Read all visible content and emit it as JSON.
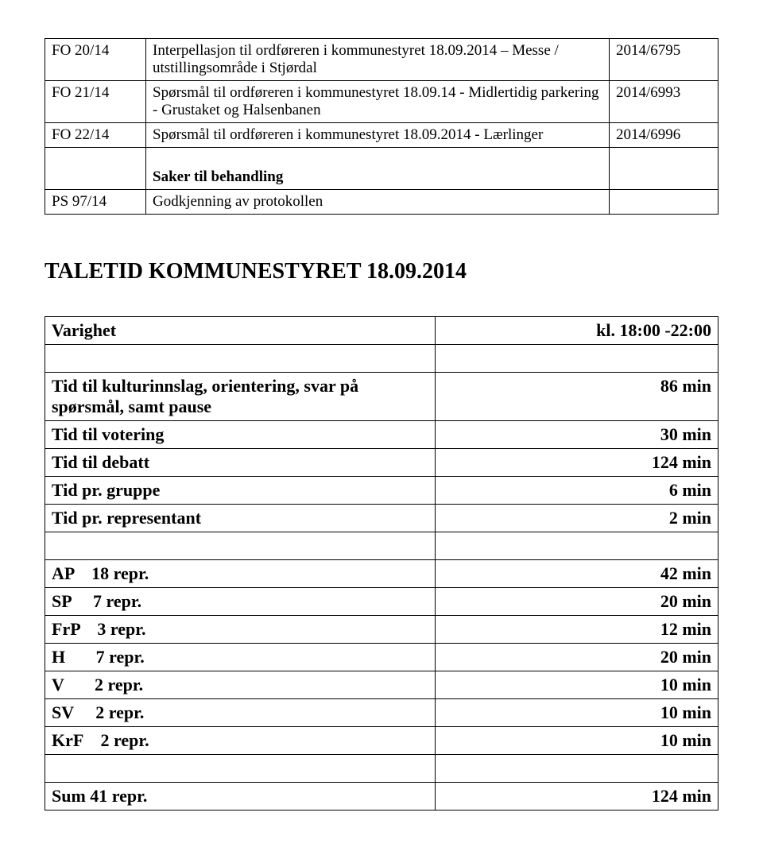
{
  "topTable": {
    "rows": [
      {
        "id": "FO 20/14",
        "desc": "Interpellasjon til ordføreren i kommunestyret 18.09.2014 – Messe / utstillingsområde i Stjørdal",
        "ref": "2014/6795"
      },
      {
        "id": "FO 21/14",
        "desc": "Spørsmål til ordføreren i kommunestyret 18.09.14 - Midlertidig parkering - Grustaket og Halsenbanen",
        "ref": "2014/6993"
      },
      {
        "id": "FO 22/14",
        "desc": "Spørsmål til ordføreren i kommunestyret 18.09.2014 - Lærlinger",
        "ref": "2014/6996"
      },
      {
        "id": "",
        "desc": "Saker til behandling",
        "ref": "",
        "bold": true,
        "leadingBlank": true
      },
      {
        "id": "PS 97/14",
        "desc": "Godkjenning av protokollen",
        "ref": ""
      }
    ]
  },
  "heading": "TALETID KOMMUNESTYRET 18.09.2014",
  "timeTable": {
    "rows": [
      {
        "label": "Varighet",
        "value": "kl. 18:00 -22:00"
      },
      {
        "spacer": true
      },
      {
        "label": "Tid til kulturinnslag, orientering, svar på spørsmål, samt pause",
        "value": "86 min"
      },
      {
        "label": "Tid til votering",
        "value": "30 min"
      },
      {
        "label": "Tid til debatt",
        "value": "124 min"
      },
      {
        "label": "Tid pr. gruppe",
        "value": "6 min"
      },
      {
        "label": "Tid pr. representant",
        "value": "2 min"
      },
      {
        "spacer": true
      },
      {
        "label": "AP    18 repr.",
        "value": "42 min"
      },
      {
        "label": "SP     7 repr.",
        "value": "20 min"
      },
      {
        "label": "FrP    3 repr.",
        "value": "12 min"
      },
      {
        "label": "H       7 repr.",
        "value": "20 min"
      },
      {
        "label": "V       2 repr.",
        "value": "10 min"
      },
      {
        "label": "SV     2 repr.",
        "value": "10 min"
      },
      {
        "label": "KrF    2 repr.",
        "value": "10 min"
      },
      {
        "spacer": true
      },
      {
        "label": "Sum 41 repr.",
        "value": "124 min"
      }
    ]
  }
}
